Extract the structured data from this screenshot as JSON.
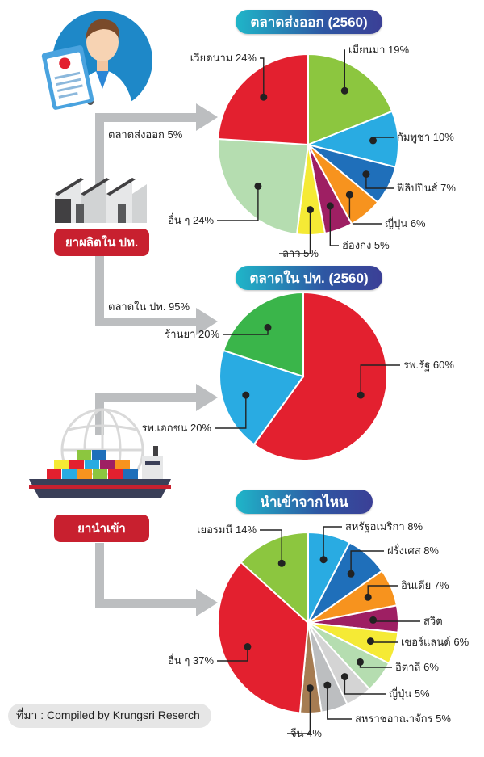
{
  "chart_data": [
    {
      "type": "pie",
      "title": "ตลาดส่งออก (2560)",
      "slices": [
        {
          "label": "เมียนมา 19%",
          "value": 19,
          "color": "#8cc63f"
        },
        {
          "label": "กัมพูชา 10%",
          "value": 10,
          "color": "#29abe2"
        },
        {
          "label": "ฟิลิปปินส์ 7%",
          "value": 7,
          "color": "#1f6fba"
        },
        {
          "label": "ญี่ปุ่น 6%",
          "value": 6,
          "color": "#f7931e"
        },
        {
          "label": "ฮ่องกง 5%",
          "value": 5,
          "color": "#9e1f63"
        },
        {
          "label": "ลาว 5%",
          "value": 5,
          "color": "#f5ea35"
        },
        {
          "label": "อื่น ๆ 24%",
          "value": 24,
          "color": "#b5ddb0"
        },
        {
          "label": "เวียดนาม 24%",
          "value": 24,
          "color": "#e3202f"
        }
      ]
    },
    {
      "type": "pie",
      "title": "ตลาดใน ปท. (2560)",
      "slices": [
        {
          "label": "รพ.รัฐ 60%",
          "value": 60,
          "color": "#e3202f"
        },
        {
          "label": "รพ.เอกชน 20%",
          "value": 20,
          "color": "#29abe2"
        },
        {
          "label": "ร้านยา 20%",
          "value": 20,
          "color": "#3ab54a"
        }
      ]
    },
    {
      "type": "pie",
      "title": "นำเข้าจากไหน",
      "slices": [
        {
          "label": "สหรัฐอเมริกา 8%",
          "value": 8,
          "color": "#29abe2"
        },
        {
          "label": "ฝรั่งเศส 8%",
          "value": 8,
          "color": "#1f6fba"
        },
        {
          "label": "อินเดีย 7%",
          "value": 7,
          "color": "#f7931e"
        },
        {
          "label": "สวิต",
          "value": 5,
          "color": "#9e1f63"
        },
        {
          "label": "เซอร์แลนด์ 6%",
          "value": 6,
          "color": "#f5ea35"
        },
        {
          "label": "อิตาลี 6%",
          "value": 6,
          "color": "#b5ddb0"
        },
        {
          "label": "ญี่ปุ่น 5%",
          "value": 5,
          "color": "#d4d4d4"
        },
        {
          "label": "สหราชอาณาจักร 5%",
          "value": 5,
          "color": "#bcbec0"
        },
        {
          "label": "จีน 4%",
          "value": 4,
          "color": "#a67c52"
        },
        {
          "label": "อื่น ๆ 37%",
          "value": 37,
          "color": "#e3202f"
        },
        {
          "label": "เยอรมนี 14%",
          "value": 14,
          "color": "#8cc63f"
        }
      ]
    }
  ],
  "flow": {
    "export_label": "ตลาดส่งออก 5%",
    "domestic_label": "ตลาดใน ปท. 95%"
  },
  "badges": {
    "produced": "ยาผลิตใน ปท.",
    "imported": "ยานำเข้า"
  },
  "source": "ที่มา : Compiled by Krungsri Reserch",
  "colors": {
    "accent_red": "#c8202f",
    "arrow_gray": "#bcbec0",
    "pill_start": "#1fb6c9",
    "pill_end": "#3b3f96"
  },
  "icons": [
    "doctor-icon",
    "factory-icon",
    "cargo-ship-icon",
    "globe-icon"
  ]
}
